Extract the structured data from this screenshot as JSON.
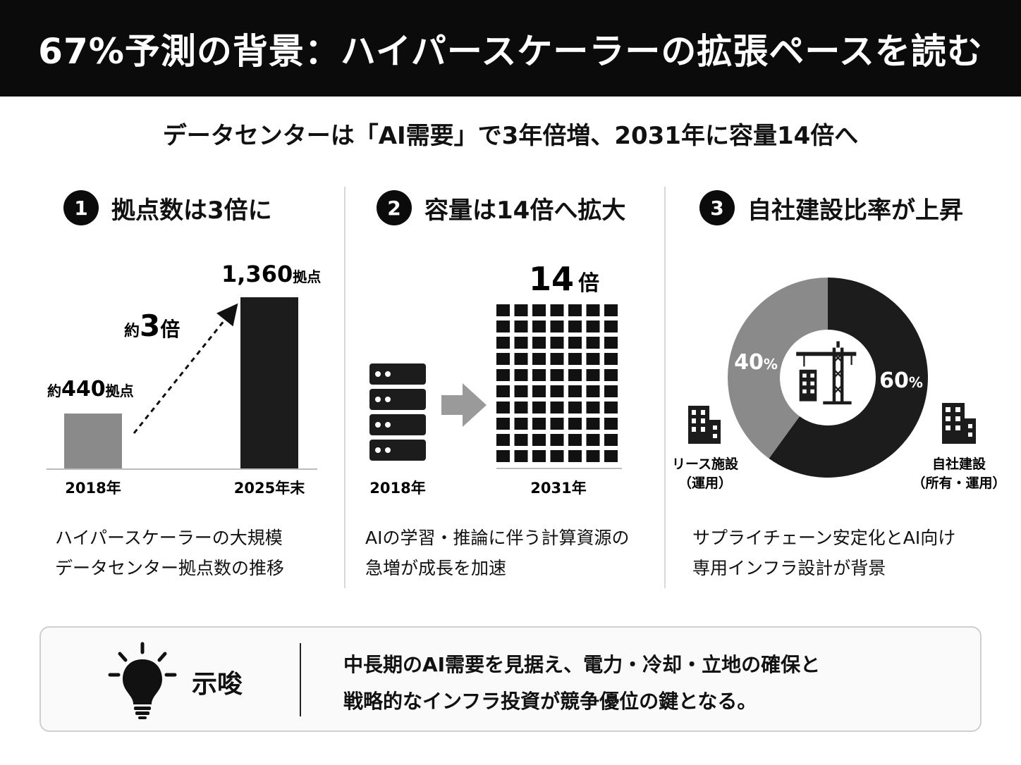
{
  "header": {
    "title": "67%予測の背景：ハイパースケーラーの拡張ペースを読む"
  },
  "subtitle": "データセンターは「AI需要」で3年倍増、2031年に容量14倍へ",
  "sections": [
    {
      "number": "1",
      "heading": "拠点数は3倍に",
      "description": [
        "ハイパースケーラーの大規模",
        "データセンター拠点数の推移"
      ]
    },
    {
      "number": "2",
      "heading": "容量は14倍へ拡大",
      "description": [
        "AIの学習・推論に伴う計算資源の",
        "急増が成長を加速"
      ]
    },
    {
      "number": "3",
      "heading": "自社建設比率が上昇",
      "description": [
        "サプライチェーン安定化とAI向け",
        "専用インフラ設計が背景"
      ]
    }
  ],
  "chart_data": [
    {
      "type": "bar",
      "categories": [
        "2018年",
        "2025年末"
      ],
      "values": [
        440,
        1360
      ],
      "value_labels": [
        {
          "prefix": "約",
          "number": "440",
          "unit": "拠点"
        },
        {
          "prefix": "",
          "number": "1,360",
          "unit": "拠点"
        }
      ],
      "annotation": {
        "prefix": "約",
        "number": "3",
        "unit": "倍"
      },
      "colors": [
        "#8a8a8a",
        "#1c1c1c"
      ]
    },
    {
      "type": "bar",
      "categories": [
        "2018年",
        "2031年"
      ],
      "values": [
        1,
        14
      ],
      "annotation": {
        "number": "14",
        "unit": "倍"
      },
      "grid_blocks": {
        "columns": 7,
        "rows": 10
      },
      "icons": [
        "server-rack-icon",
        "arrow-right-icon"
      ]
    },
    {
      "type": "pie",
      "labels": [
        "自社建設（所有・運用）",
        "リース施設（運用）"
      ],
      "values": [
        60,
        40
      ],
      "value_labels": [
        {
          "number": "60",
          "unit": "%"
        },
        {
          "number": "40",
          "unit": "%"
        }
      ],
      "legend": [
        {
          "line1": "自社建設",
          "line2": "（所有・運用）",
          "icon": "building-icon"
        },
        {
          "line1": "リース施設",
          "line2": "（運用）",
          "icon": "building-icon"
        }
      ],
      "center_icon": "construction-crane-icon",
      "colors": [
        "#1c1c1c",
        "#8a8a8a"
      ]
    }
  ],
  "implication": {
    "label": "示唆",
    "icon": "lightbulb-icon",
    "lines": [
      "中長期のAI需要を見据え、電力・冷却・立地の確保と",
      "戦略的なインフラ投資が競争優位の鍵となる。"
    ]
  }
}
